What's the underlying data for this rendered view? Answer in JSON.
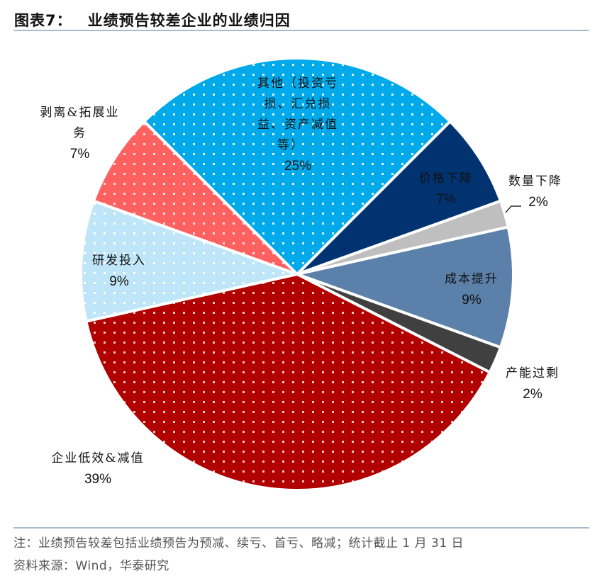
{
  "header": {
    "figure_label": "图表7：",
    "title": "业绩预告较差企业的业绩归因"
  },
  "footer": {
    "note": "注：业绩预告较差包括业绩预告为预减、续亏、首亏、略减；统计截止 1 月 31 日",
    "source": "资料来源：Wind，华泰研究"
  },
  "labels": {
    "other": {
      "line1": "其他（投资亏",
      "line2": "损、汇兑损",
      "line3": "益、资产减值",
      "line4": "等）",
      "pct": "25%"
    },
    "price_decline": {
      "line1": "价格下降",
      "pct": "7%"
    },
    "volume_decline": {
      "line1": "数量下降",
      "pct": "2%"
    },
    "cost_increase": {
      "line1": "成本提升",
      "pct": "9%"
    },
    "overcapacity": {
      "line1": "产能过剩",
      "pct": "2%"
    },
    "inefficiency": {
      "line1": "企业低效&减值",
      "pct": "39%"
    },
    "rnd": {
      "line1": "研发投入",
      "pct": "9%"
    },
    "divestiture": {
      "line1": "剥离&拓展业",
      "line2": "务",
      "pct": "7%"
    }
  },
  "chart_data": {
    "type": "pie",
    "title": "业绩预告较差企业的业绩归因",
    "start_angle_deg_clockwise_from_top": 45,
    "direction": "clockwise",
    "categories": [
      "价格下降",
      "数量下降",
      "成本提升",
      "产能过剩",
      "企业低效&减值",
      "研发投入",
      "剥离&拓展业务",
      "其他（投资亏损、汇兑损益、资产减值等）"
    ],
    "values": [
      7,
      2,
      9,
      2,
      39,
      9,
      7,
      25
    ],
    "unit": "%",
    "colors": [
      "#00336F",
      "#BFBFBF",
      "#5B80A9",
      "#404040",
      "#B00000",
      "#BFE6F8",
      "#FF6060",
      "#00A9EA"
    ],
    "patterns": [
      "solid",
      "solid",
      "solid",
      "solid",
      "dots",
      "dots",
      "dots",
      "dots"
    ],
    "data_labels": [
      "价格下降 7%",
      "数量下降 2%",
      "成本提升 9%",
      "产能过剩 2%",
      "企业低效&减值 39%",
      "研发投入 9%",
      "剥离&拓展业务 7%",
      "其他（投资亏损、汇兑损益、资产减值等） 25%"
    ],
    "legend": "none"
  }
}
